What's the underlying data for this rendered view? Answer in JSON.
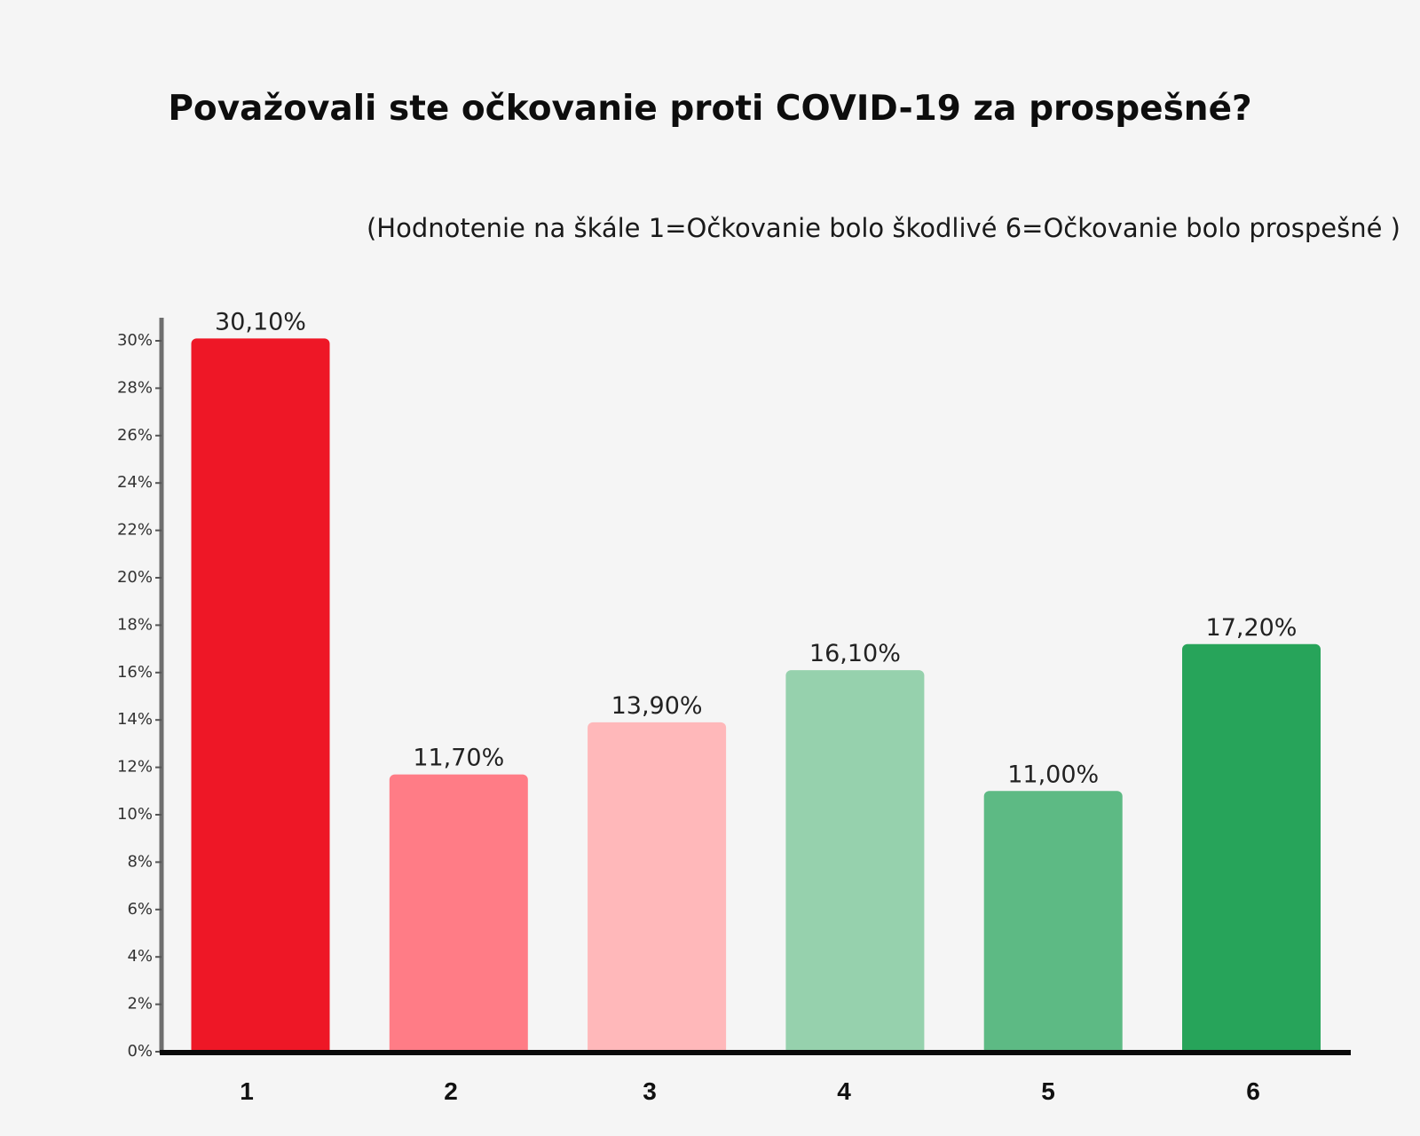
{
  "chart_data": {
    "type": "bar",
    "title": "Považovali ste očkovanie proti COVID-19 za prospešné?",
    "subtitle": "(Hodnotenie na škále 1=Očkovanie bolo škodlivé 6=Očkovanie bolo prospešné )",
    "categories": [
      "1",
      "2",
      "3",
      "4",
      "5",
      "6"
    ],
    "values": [
      30.1,
      11.7,
      13.9,
      16.1,
      11.0,
      17.2
    ],
    "data_labels": [
      "30,10%",
      "11,70%",
      "13,90%",
      "16,10%",
      "11,00%",
      "17,20%"
    ],
    "colors": [
      "#ee1726",
      "#ff7c86",
      "#ffb8ba",
      "#96d1ad",
      "#5dba84",
      "#27a45a"
    ],
    "ylim": [
      0,
      30
    ],
    "yticks": [
      0,
      2,
      4,
      6,
      8,
      10,
      12,
      14,
      16,
      18,
      20,
      22,
      24,
      26,
      28,
      30
    ],
    "ytick_labels": [
      "0%",
      "2%",
      "4%",
      "6%",
      "8%",
      "10%",
      "12%",
      "14%",
      "16%",
      "18%",
      "20%",
      "22%",
      "24%",
      "26%",
      "28%",
      "30%"
    ],
    "xlabel": "",
    "ylabel": "",
    "grid": false,
    "legend": "none"
  }
}
